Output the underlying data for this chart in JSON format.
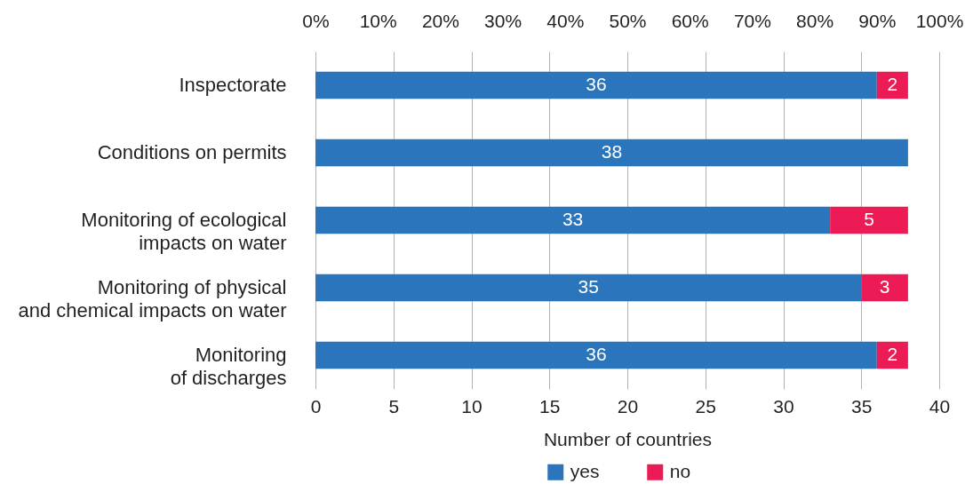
{
  "chart_data": {
    "type": "bar",
    "orientation": "horizontal",
    "stacked": true,
    "categories": [
      "Inspectorate",
      "Conditions on permits",
      "Monitoring of ecological\nimpacts on water",
      "Monitoring of physical\nand chemical impacts on water",
      "Monitoring\nof discharges"
    ],
    "series": [
      {
        "name": "yes",
        "color": "#2a75bb",
        "values": [
          36,
          38,
          33,
          35,
          36
        ]
      },
      {
        "name": "no",
        "color": "#ec1a55",
        "values": [
          2,
          null,
          5,
          3,
          2
        ]
      }
    ],
    "data_labels": true,
    "xlabel": "Number of countries",
    "xlim": [
      0,
      40
    ],
    "xticks": [
      0,
      5,
      10,
      15,
      20,
      25,
      30,
      35,
      40
    ],
    "x2lim": [
      0,
      100
    ],
    "x2ticks": [
      {
        "value": 0,
        "label": "0%"
      },
      {
        "value": 10,
        "label": "10%"
      },
      {
        "value": 20,
        "label": "20%"
      },
      {
        "value": 30,
        "label": "30%"
      },
      {
        "value": 40,
        "label": "40%"
      },
      {
        "value": 50,
        "label": "50%"
      },
      {
        "value": 60,
        "label": "60%"
      },
      {
        "value": 70,
        "label": "70%"
      },
      {
        "value": 80,
        "label": "80%"
      },
      {
        "value": 90,
        "label": "90%"
      },
      {
        "value": 100,
        "label": "100%"
      }
    ],
    "grid": "x",
    "legend": "bottom"
  }
}
